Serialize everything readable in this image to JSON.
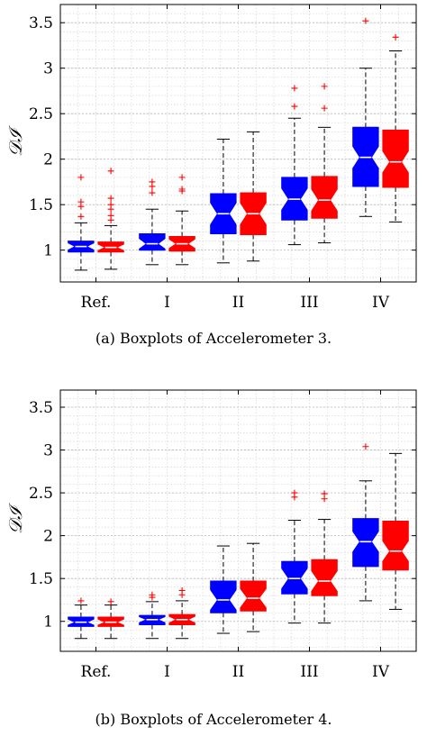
{
  "colors": {
    "blue": "#0000ff",
    "red": "#ff0000",
    "median": "#ffffff",
    "outlier": "#ff0000",
    "grid": "#d9d9d9",
    "whisker": "#000000"
  },
  "chart_data": [
    {
      "type": "boxplot",
      "caption": "(a) Boxplots of Accelerometer 3.",
      "ylabel": "𝒟ℐ",
      "xlabel": "",
      "categories": [
        "Ref.",
        "I",
        "II",
        "III",
        "IV"
      ],
      "ylim": [
        0.65,
        3.7
      ],
      "yticks": [
        1,
        1.5,
        2,
        2.5,
        3,
        3.5
      ],
      "ytick_labels": [
        "1",
        "1.5",
        "2",
        "2.5",
        "3",
        "3.5"
      ],
      "grid": true,
      "notched": true,
      "series": [
        {
          "color": "blue",
          "boxes": [
            {
              "min": 0.78,
              "q1": 0.98,
              "median": 1.04,
              "q3": 1.1,
              "max": 1.3,
              "outliers": [
                1.37,
                1.48,
                1.53,
                1.8
              ]
            },
            {
              "min": 0.84,
              "q1": 1.0,
              "median": 1.07,
              "q3": 1.18,
              "max": 1.45,
              "outliers": [
                1.63,
                1.7,
                1.75
              ]
            },
            {
              "min": 0.86,
              "q1": 1.18,
              "median": 1.4,
              "q3": 1.62,
              "max": 2.22,
              "outliers": []
            },
            {
              "min": 1.06,
              "q1": 1.33,
              "median": 1.56,
              "q3": 1.8,
              "max": 2.45,
              "outliers": [
                2.58,
                2.78
              ]
            },
            {
              "min": 1.37,
              "q1": 1.7,
              "median": 2.02,
              "q3": 2.35,
              "max": 3.0,
              "outliers": [
                3.52
              ]
            }
          ]
        },
        {
          "color": "red",
          "boxes": [
            {
              "min": 0.79,
              "q1": 0.98,
              "median": 1.03,
              "q3": 1.09,
              "max": 1.27,
              "outliers": [
                1.33,
                1.38,
                1.45,
                1.5,
                1.57,
                1.87
              ]
            },
            {
              "min": 0.84,
              "q1": 0.99,
              "median": 1.07,
              "q3": 1.15,
              "max": 1.43,
              "outliers": [
                1.65,
                1.67,
                1.8
              ]
            },
            {
              "min": 0.88,
              "q1": 1.17,
              "median": 1.4,
              "q3": 1.63,
              "max": 2.3,
              "outliers": []
            },
            {
              "min": 1.08,
              "q1": 1.35,
              "median": 1.55,
              "q3": 1.81,
              "max": 2.35,
              "outliers": [
                2.56,
                2.8
              ]
            },
            {
              "min": 1.31,
              "q1": 1.69,
              "median": 1.97,
              "q3": 2.32,
              "max": 3.19,
              "outliers": [
                3.34
              ]
            }
          ]
        }
      ]
    },
    {
      "type": "boxplot",
      "caption": "(b) Boxplots of Accelerometer 4.",
      "ylabel": "𝒟ℐ",
      "xlabel": "",
      "categories": [
        "Ref.",
        "I",
        "II",
        "III",
        "IV"
      ],
      "ylim": [
        0.65,
        3.7
      ],
      "yticks": [
        1,
        1.5,
        2,
        2.5,
        3,
        3.5
      ],
      "ytick_labels": [
        "1",
        "1.5",
        "2",
        "2.5",
        "3",
        "3.5"
      ],
      "grid": true,
      "notched": true,
      "series": [
        {
          "color": "blue",
          "boxes": [
            {
              "min": 0.8,
              "q1": 0.94,
              "median": 0.99,
              "q3": 1.05,
              "max": 1.19,
              "outliers": [
                1.24
              ]
            },
            {
              "min": 0.8,
              "q1": 0.96,
              "median": 1.02,
              "q3": 1.07,
              "max": 1.23,
              "outliers": [
                1.28,
                1.31
              ]
            },
            {
              "min": 0.86,
              "q1": 1.1,
              "median": 1.25,
              "q3": 1.47,
              "max": 1.88,
              "outliers": []
            },
            {
              "min": 0.98,
              "q1": 1.32,
              "median": 1.5,
              "q3": 1.7,
              "max": 2.18,
              "outliers": [
                2.45,
                2.5
              ]
            },
            {
              "min": 1.24,
              "q1": 1.64,
              "median": 1.93,
              "q3": 2.2,
              "max": 2.64,
              "outliers": [
                3.04
              ]
            }
          ]
        },
        {
          "color": "red",
          "boxes": [
            {
              "min": 0.8,
              "q1": 0.94,
              "median": 0.99,
              "q3": 1.05,
              "max": 1.19,
              "outliers": [
                1.23
              ]
            },
            {
              "min": 0.8,
              "q1": 0.96,
              "median": 1.02,
              "q3": 1.08,
              "max": 1.24,
              "outliers": [
                1.31,
                1.36
              ]
            },
            {
              "min": 0.88,
              "q1": 1.12,
              "median": 1.27,
              "q3": 1.47,
              "max": 1.91,
              "outliers": []
            },
            {
              "min": 0.98,
              "q1": 1.3,
              "median": 1.47,
              "q3": 1.72,
              "max": 2.19,
              "outliers": [
                2.43,
                2.49
              ]
            },
            {
              "min": 1.14,
              "q1": 1.6,
              "median": 1.82,
              "q3": 2.17,
              "max": 2.96,
              "outliers": []
            }
          ]
        }
      ]
    }
  ]
}
